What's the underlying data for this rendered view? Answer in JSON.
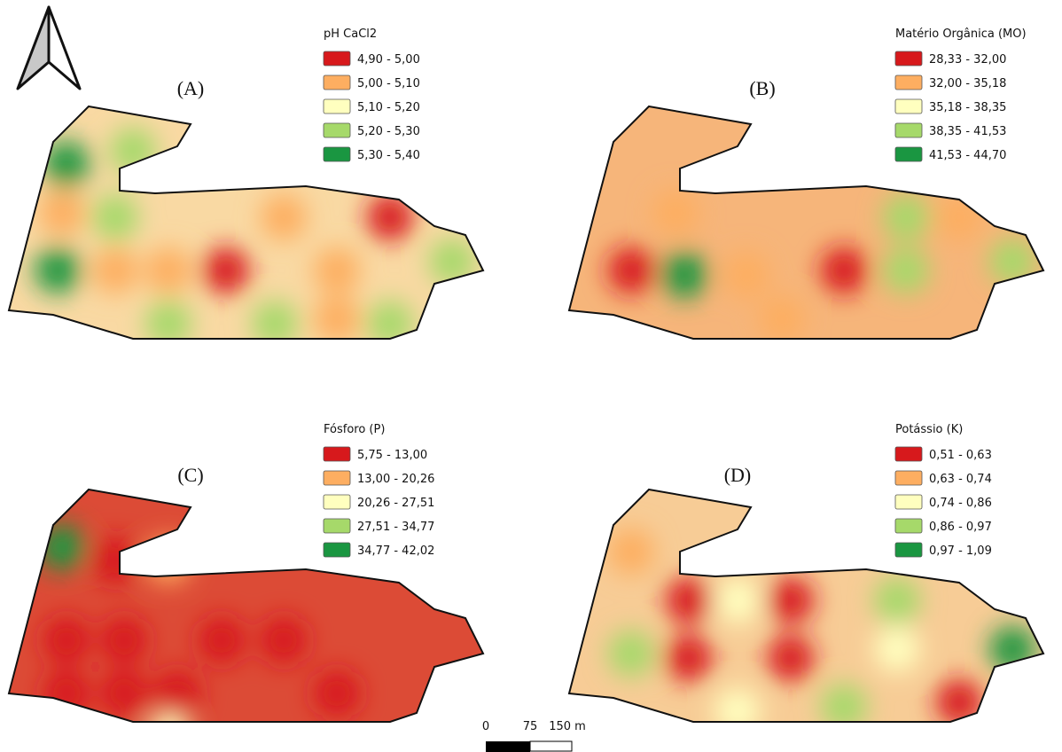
{
  "panels": [
    {
      "label": "(A)",
      "legend_title": "pH CaCl2",
      "classes": [
        "4,90 - 5,00",
        "5,00 - 5,10",
        "5,10 - 5,20",
        "5,20 - 5,30",
        "5,30 - 5,40"
      ]
    },
    {
      "label": "(B)",
      "legend_title": "Matério Orgânica (MO)",
      "classes": [
        "28,33 - 32,00",
        "32,00 - 35,18",
        "35,18 - 38,35",
        "38,35 - 41,53",
        "41,53 - 44,70"
      ]
    },
    {
      "label": "(C)",
      "legend_title": "Fósforo (P)",
      "classes": [
        "5,75 - 13,00",
        "13,00 - 20,26",
        "20,26 - 27,51",
        "27,51 - 34,77",
        "34,77 - 42,02"
      ]
    },
    {
      "label": "(D)",
      "legend_title": "Potássio (K)",
      "classes": [
        "0,51 - 0,63",
        "0,63 - 0,74",
        "0,74 - 0,86",
        "0,86 - 0,97",
        "0,97 - 1,09"
      ]
    }
  ],
  "class_colors": [
    "#d7191c",
    "#fdae61",
    "#ffffbf",
    "#a6d96a",
    "#1a9641"
  ],
  "scale_bar": {
    "labels": [
      "0",
      "75",
      "150 m"
    ]
  }
}
